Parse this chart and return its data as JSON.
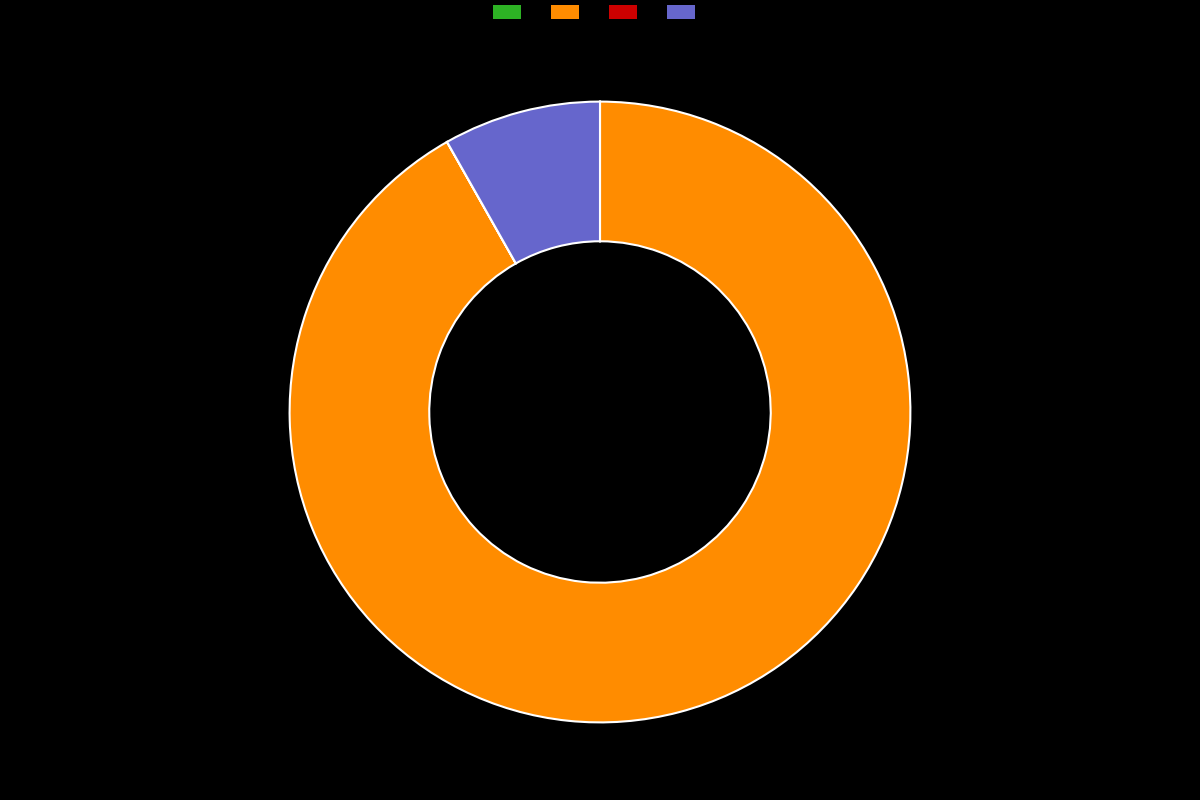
{
  "slices": [
    0.001,
    91.8,
    0.001,
    8.2
  ],
  "colors": [
    "#2db224",
    "#ff8c00",
    "#cc0000",
    "#6666cc"
  ],
  "legend_labels": [
    "",
    "",
    "",
    ""
  ],
  "background_color": "#000000",
  "wedge_edge_color": "#ffffff",
  "wedge_linewidth": 1.5,
  "donut_width": 0.45,
  "startangle": 90,
  "figsize": [
    12.0,
    8.0
  ],
  "dpi": 100
}
